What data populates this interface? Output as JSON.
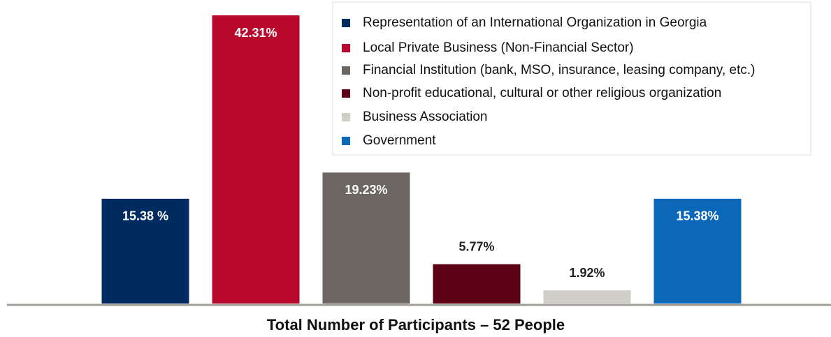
{
  "chart_data": {
    "type": "bar",
    "title": "Total Number of Participants – 52 People",
    "categories": [
      "Representation of an International Organization in Georgia",
      "Local Private Business (Non-Financial Sector)",
      "Financial Institution (bank, MSO, insurance, leasing company, etc.)",
      "Non-profit educational, cultural or other religious organization",
      "Business Association",
      "Government"
    ],
    "values": [
      15.38,
      42.31,
      19.23,
      5.77,
      1.92,
      15.38
    ],
    "value_labels": [
      "15.38 %",
      "42.31%",
      "19.23%",
      "5.77%",
      "1.92%",
      "15.38%"
    ],
    "colors": [
      "#002b61",
      "#b8092c",
      "#6b6661",
      "#5c0016",
      "#cfcfc8",
      "#0b67b8"
    ],
    "legend": "upper right"
  }
}
